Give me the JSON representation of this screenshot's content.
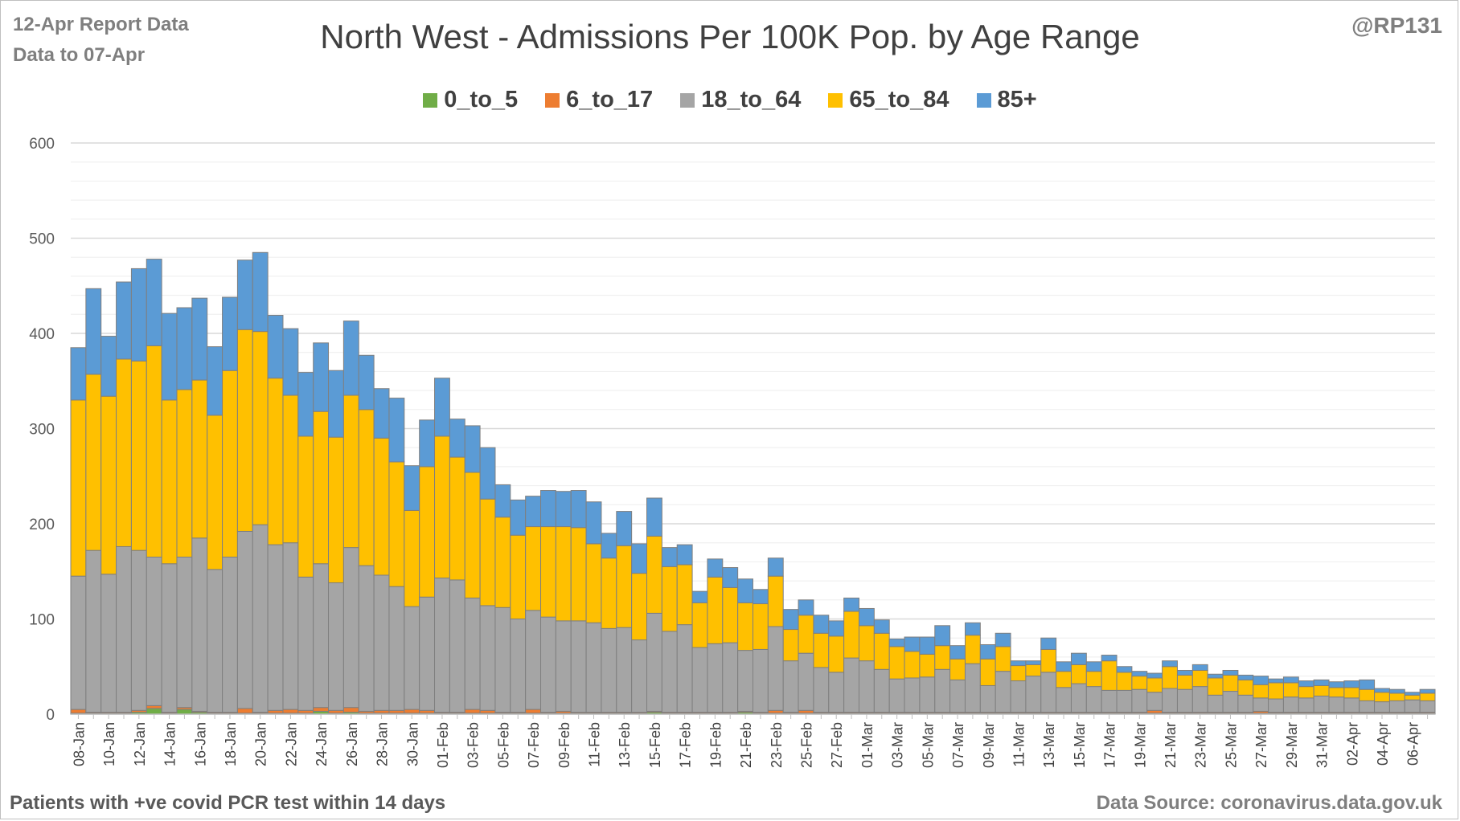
{
  "header": {
    "report_line1": "12-Apr Report Data",
    "report_line2": "Data to 07-Apr",
    "handle": "@RP131"
  },
  "footer": {
    "left_note": "Patients with  +ve covid PCR test within 14 days",
    "source": "Data Source: coronavirus.data.gov.uk"
  },
  "chart_data": {
    "type": "bar",
    "stacked": true,
    "title": "North West - Admissions Per 100K Pop. by Age Range",
    "xlabel": "",
    "ylabel": "",
    "ylim": [
      0,
      600
    ],
    "yticks": [
      0,
      100,
      200,
      300,
      400,
      500,
      600
    ],
    "grid": true,
    "legend_position": "top",
    "categories": [
      "08-Jan",
      "09-Jan",
      "10-Jan",
      "11-Jan",
      "12-Jan",
      "13-Jan",
      "14-Jan",
      "15-Jan",
      "16-Jan",
      "17-Jan",
      "18-Jan",
      "19-Jan",
      "20-Jan",
      "21-Jan",
      "22-Jan",
      "23-Jan",
      "24-Jan",
      "25-Jan",
      "26-Jan",
      "27-Jan",
      "28-Jan",
      "29-Jan",
      "30-Jan",
      "31-Jan",
      "01-Feb",
      "02-Feb",
      "03-Feb",
      "04-Feb",
      "05-Feb",
      "06-Feb",
      "07-Feb",
      "08-Feb",
      "09-Feb",
      "10-Feb",
      "11-Feb",
      "12-Feb",
      "13-Feb",
      "14-Feb",
      "15-Feb",
      "16-Feb",
      "17-Feb",
      "18-Feb",
      "19-Feb",
      "20-Feb",
      "21-Feb",
      "22-Feb",
      "23-Feb",
      "24-Feb",
      "25-Feb",
      "26-Feb",
      "27-Feb",
      "28-Feb",
      "01-Mar",
      "02-Mar",
      "03-Mar",
      "04-Mar",
      "05-Mar",
      "06-Mar",
      "07-Mar",
      "08-Mar",
      "09-Mar",
      "10-Mar",
      "11-Mar",
      "12-Mar",
      "13-Mar",
      "14-Mar",
      "15-Mar",
      "16-Mar",
      "17-Mar",
      "18-Mar",
      "19-Mar",
      "20-Mar",
      "21-Mar",
      "22-Mar",
      "23-Mar",
      "24-Mar",
      "25-Mar",
      "26-Mar",
      "27-Mar",
      "28-Mar",
      "29-Mar",
      "30-Mar",
      "31-Mar",
      "01-Apr",
      "02-Apr",
      "03-Apr",
      "04-Apr",
      "05-Apr",
      "06-Apr",
      "07-Apr"
    ],
    "xtick_labels": [
      "08-Jan",
      "10-Jan",
      "12-Jan",
      "14-Jan",
      "16-Jan",
      "18-Jan",
      "20-Jan",
      "22-Jan",
      "24-Jan",
      "26-Jan",
      "28-Jan",
      "30-Jan",
      "01-Feb",
      "03-Feb",
      "05-Feb",
      "07-Feb",
      "09-Feb",
      "11-Feb",
      "13-Feb",
      "15-Feb",
      "17-Feb",
      "19-Feb",
      "21-Feb",
      "23-Feb",
      "25-Feb",
      "27-Feb",
      "01-Mar",
      "03-Mar",
      "05-Mar",
      "07-Mar",
      "09-Mar",
      "11-Mar",
      "13-Mar",
      "15-Mar",
      "17-Mar",
      "19-Mar",
      "21-Mar",
      "23-Mar",
      "25-Mar",
      "27-Mar",
      "29-Mar",
      "31-Mar",
      "02-Apr",
      "04-Apr",
      "06-Apr"
    ],
    "series": [
      {
        "name": "0_to_5",
        "color": "#70ad47",
        "values": [
          1,
          1,
          1,
          1,
          2,
          6,
          1,
          5,
          2,
          1,
          1,
          1,
          1,
          1,
          1,
          1,
          3,
          1,
          2,
          1,
          1,
          1,
          1,
          1,
          1,
          1,
          1,
          1,
          1,
          1,
          1,
          1,
          1,
          1,
          1,
          1,
          1,
          1,
          2,
          1,
          1,
          1,
          1,
          1,
          2,
          1,
          1,
          1,
          1,
          1,
          1,
          1,
          1,
          1,
          1,
          1,
          1,
          1,
          1,
          1,
          1,
          1,
          1,
          1,
          1,
          1,
          1,
          1,
          1,
          1,
          1,
          1,
          1,
          1,
          1,
          1,
          1,
          1,
          1,
          1,
          1,
          1,
          1,
          1,
          1,
          1,
          1,
          1,
          1,
          1
        ]
      },
      {
        "name": "6_to_17",
        "color": "#ed7d31",
        "values": [
          4,
          1,
          1,
          1,
          2,
          3,
          1,
          2,
          1,
          1,
          1,
          5,
          1,
          3,
          4,
          3,
          4,
          3,
          5,
          2,
          3,
          3,
          4,
          3,
          1,
          1,
          4,
          3,
          1,
          1,
          4,
          1,
          2,
          1,
          1,
          1,
          1,
          1,
          1,
          1,
          1,
          1,
          1,
          1,
          1,
          1,
          3,
          1,
          3,
          1,
          1,
          1,
          1,
          1,
          1,
          1,
          1,
          1,
          1,
          1,
          1,
          1,
          1,
          1,
          1,
          1,
          1,
          1,
          1,
          1,
          1,
          3,
          1,
          1,
          1,
          1,
          1,
          1,
          2,
          1,
          1,
          1,
          1,
          1,
          1,
          1,
          1,
          1,
          1,
          1
        ]
      },
      {
        "name": "18_to_64",
        "color": "#a5a5a5",
        "values": [
          140,
          170,
          145,
          174,
          168,
          156,
          156,
          158,
          182,
          150,
          163,
          186,
          197,
          174,
          175,
          140,
          151,
          134,
          168,
          153,
          142,
          130,
          108,
          119,
          141,
          139,
          117,
          110,
          110,
          98,
          104,
          100,
          95,
          96,
          94,
          88,
          89,
          76,
          103,
          85,
          92,
          68,
          72,
          73,
          64,
          66,
          88,
          54,
          60,
          47,
          42,
          57,
          54,
          45,
          35,
          36,
          37,
          45,
          34,
          51,
          28,
          43,
          33,
          38,
          42,
          26,
          30,
          27,
          23,
          23,
          24,
          19,
          25,
          24,
          27,
          18,
          22,
          18,
          14,
          14,
          16,
          15,
          17,
          16,
          15,
          12,
          11,
          12,
          13,
          12
        ]
      },
      {
        "name": "65_to_84",
        "color": "#ffc000",
        "values": [
          185,
          185,
          187,
          197,
          199,
          222,
          172,
          176,
          166,
          162,
          196,
          212,
          203,
          175,
          155,
          148,
          160,
          153,
          160,
          164,
          144,
          131,
          101,
          137,
          149,
          129,
          132,
          112,
          95,
          88,
          88,
          95,
          99,
          98,
          83,
          74,
          86,
          70,
          81,
          68,
          63,
          47,
          70,
          58,
          50,
          48,
          53,
          33,
          40,
          36,
          38,
          49,
          37,
          38,
          34,
          28,
          24,
          25,
          22,
          30,
          28,
          26,
          16,
          12,
          24,
          17,
          20,
          16,
          31,
          19,
          14,
          15,
          23,
          15,
          17,
          18,
          17,
          16,
          14,
          17,
          15,
          12,
          11,
          10,
          11,
          12,
          10,
          8,
          5,
          8
        ]
      },
      {
        "name": "85+",
        "color": "#5b9bd5",
        "values": [
          55,
          90,
          63,
          81,
          97,
          91,
          91,
          86,
          86,
          72,
          77,
          73,
          83,
          66,
          70,
          67,
          72,
          70,
          78,
          57,
          52,
          67,
          47,
          49,
          61,
          40,
          49,
          54,
          34,
          37,
          32,
          38,
          37,
          39,
          44,
          26,
          36,
          31,
          40,
          20,
          21,
          12,
          19,
          21,
          25,
          15,
          19,
          21,
          16,
          19,
          16,
          14,
          18,
          14,
          8,
          15,
          18,
          21,
          14,
          13,
          15,
          14,
          5,
          4,
          12,
          10,
          12,
          10,
          6,
          6,
          5,
          5,
          6,
          5,
          6,
          4,
          5,
          5,
          9,
          4,
          6,
          6,
          6,
          6,
          7,
          10,
          4,
          4,
          3,
          4
        ]
      }
    ]
  }
}
